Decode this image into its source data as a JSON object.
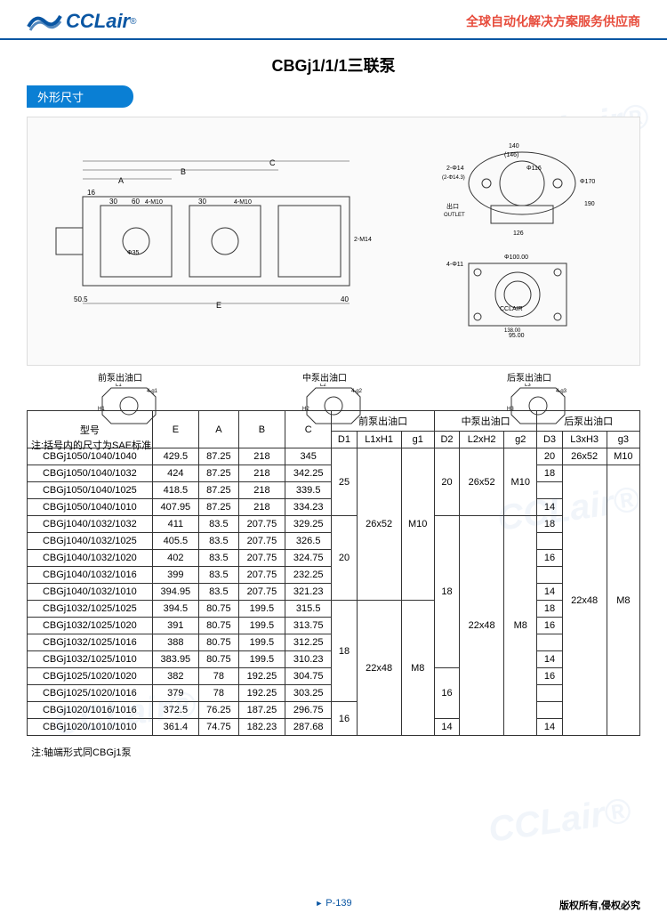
{
  "header": {
    "logo_text": "CCLair",
    "logo_r": "®",
    "tagline": "全球自动化解决方案服务供应商"
  },
  "title": "CBGj1/1/1三联泵",
  "section_label": "外形尺寸",
  "diagram": {
    "main_labels": [
      "A",
      "B",
      "C",
      "E",
      "16",
      "30",
      "60",
      "4-M10",
      "Φ35",
      "2-M14",
      "50.5",
      "40"
    ],
    "side_labels": [
      "140",
      "(146)",
      "Φ116",
      "Φ170",
      "2-Φ14",
      "(2-Φ14.3)",
      "126",
      "190",
      "出口",
      "OUTLET"
    ],
    "bottom_labels": [
      "4-Φ11",
      "Φ100.00",
      "95.00",
      "138.00",
      "CCLAIR"
    ],
    "port_front": "前泵出油口",
    "port_mid": "中泵出油口",
    "port_rear": "后泵出油口",
    "port_sub": [
      "L1",
      "H1",
      "4-g1",
      "L2",
      "H2",
      "4-g2",
      "L3",
      "H3",
      "4-g3"
    ],
    "note": "注:括号内的尺寸为SAE标准"
  },
  "table": {
    "headers": {
      "model": "型号",
      "E": "E",
      "A": "A",
      "B": "B",
      "C": "C",
      "front": "前泵出油口",
      "mid": "中泵出油口",
      "rear": "后泵出油口",
      "D1": "D1",
      "L1xH1": "L1xH1",
      "g1": "g1",
      "D2": "D2",
      "L2xH2": "L2xH2",
      "g2": "g2",
      "D3": "D3",
      "L3xH3": "L3xH3",
      "g3": "g3"
    },
    "rows": [
      {
        "m": "CBGj1050/1040/1040",
        "E": "429.5",
        "A": "87.25",
        "B": "218",
        "C": "345",
        "D1": "25",
        "L1": "26x52",
        "g1": "M10",
        "D2": "20",
        "L2": "26x52",
        "g2": "M10",
        "D3": "20",
        "L3": "26x52",
        "g3": "M10"
      },
      {
        "m": "CBGj1050/1040/1032",
        "E": "424",
        "A": "87.25",
        "B": "218",
        "C": "342.25",
        "D1": "",
        "L1": "",
        "g1": "",
        "D2": "",
        "L2": "",
        "g2": "",
        "D3": "18",
        "L3": "22x48",
        "g3": "M8"
      },
      {
        "m": "CBGj1050/1040/1025",
        "E": "418.5",
        "A": "87.25",
        "B": "218",
        "C": "339.5",
        "D1": "",
        "L1": "",
        "g1": "",
        "D2": "",
        "L2": "",
        "g2": "",
        "D3": "",
        "L3": "",
        "g3": ""
      },
      {
        "m": "CBGj1050/1040/1010",
        "E": "407.95",
        "A": "87.25",
        "B": "218",
        "C": "334.23",
        "D1": "",
        "L1": "",
        "g1": "",
        "D2": "",
        "L2": "",
        "g2": "",
        "D3": "14",
        "L3": "",
        "g3": ""
      },
      {
        "m": "CBGj1040/1032/1032",
        "E": "411",
        "A": "83.5",
        "B": "207.75",
        "C": "329.25",
        "D1": "20",
        "L1": "",
        "g1": "",
        "D2": "18",
        "L2": "22x48",
        "g2": "M8",
        "D3": "18",
        "L3": "",
        "g3": ""
      },
      {
        "m": "CBGj1040/1032/1025",
        "E": "405.5",
        "A": "83.5",
        "B": "207.75",
        "C": "326.5",
        "D1": "",
        "L1": "",
        "g1": "",
        "D2": "",
        "L2": "",
        "g2": "",
        "D3": "",
        "L3": "",
        "g3": ""
      },
      {
        "m": "CBGj1040/1032/1020",
        "E": "402",
        "A": "83.5",
        "B": "207.75",
        "C": "324.75",
        "D1": "",
        "L1": "",
        "g1": "",
        "D2": "",
        "L2": "",
        "g2": "",
        "D3": "16",
        "L3": "",
        "g3": ""
      },
      {
        "m": "CBGj1040/1032/1016",
        "E": "399",
        "A": "83.5",
        "B": "207.75",
        "C": "232.25",
        "D1": "",
        "L1": "",
        "g1": "",
        "D2": "",
        "L2": "",
        "g2": "",
        "D3": "",
        "L3": "",
        "g3": ""
      },
      {
        "m": "CBGj1040/1032/1010",
        "E": "394.95",
        "A": "83.5",
        "B": "207.75",
        "C": "321.23",
        "D1": "",
        "L1": "",
        "g1": "",
        "D2": "",
        "L2": "",
        "g2": "",
        "D3": "14",
        "L3": "",
        "g3": ""
      },
      {
        "m": "CBGj1032/1025/1025",
        "E": "394.5",
        "A": "80.75",
        "B": "199.5",
        "C": "315.5",
        "D1": "18",
        "L1": "22x48",
        "g1": "M8",
        "D2": "",
        "L2": "",
        "g2": "",
        "D3": "18",
        "L3": "",
        "g3": ""
      },
      {
        "m": "CBGj1032/1025/1020",
        "E": "391",
        "A": "80.75",
        "B": "199.5",
        "C": "313.75",
        "D1": "",
        "L1": "",
        "g1": "",
        "D2": "",
        "L2": "",
        "g2": "",
        "D3": "16",
        "L3": "",
        "g3": ""
      },
      {
        "m": "CBGj1032/1025/1016",
        "E": "388",
        "A": "80.75",
        "B": "199.5",
        "C": "312.25",
        "D1": "",
        "L1": "",
        "g1": "",
        "D2": "",
        "L2": "",
        "g2": "",
        "D3": "",
        "L3": "",
        "g3": ""
      },
      {
        "m": "CBGj1032/1025/1010",
        "E": "383.95",
        "A": "80.75",
        "B": "199.5",
        "C": "310.23",
        "D1": "",
        "L1": "",
        "g1": "",
        "D2": "",
        "L2": "",
        "g2": "",
        "D3": "14",
        "L3": "",
        "g3": ""
      },
      {
        "m": "CBGj1025/1020/1020",
        "E": "382",
        "A": "78",
        "B": "192.25",
        "C": "304.75",
        "D1": "",
        "L1": "",
        "g1": "",
        "D2": "16",
        "L2": "",
        "g2": "",
        "D3": "16",
        "L3": "",
        "g3": ""
      },
      {
        "m": "CBGj1025/1020/1016",
        "E": "379",
        "A": "78",
        "B": "192.25",
        "C": "303.25",
        "D1": "",
        "L1": "",
        "g1": "",
        "D2": "",
        "L2": "",
        "g2": "",
        "D3": "",
        "L3": "",
        "g3": ""
      },
      {
        "m": "CBGj1020/1016/1016",
        "E": "372.5",
        "A": "76.25",
        "B": "187.25",
        "C": "296.75",
        "D1": "16",
        "L1": "",
        "g1": "",
        "D2": "",
        "L2": "",
        "g2": "",
        "D3": "",
        "L3": "",
        "g3": ""
      },
      {
        "m": "CBGj1020/1010/1010",
        "E": "361.4",
        "A": "74.75",
        "B": "182.23",
        "C": "287.68",
        "D1": "",
        "L1": "",
        "g1": "",
        "D2": "14",
        "L2": "",
        "g2": "",
        "D3": "14",
        "L3": "",
        "g3": ""
      }
    ],
    "note": "注:轴端形式同CBGj1泵"
  },
  "footer": {
    "page": "P-139",
    "copyright": "版权所有,侵权必究"
  },
  "watermark": "CCLair®"
}
